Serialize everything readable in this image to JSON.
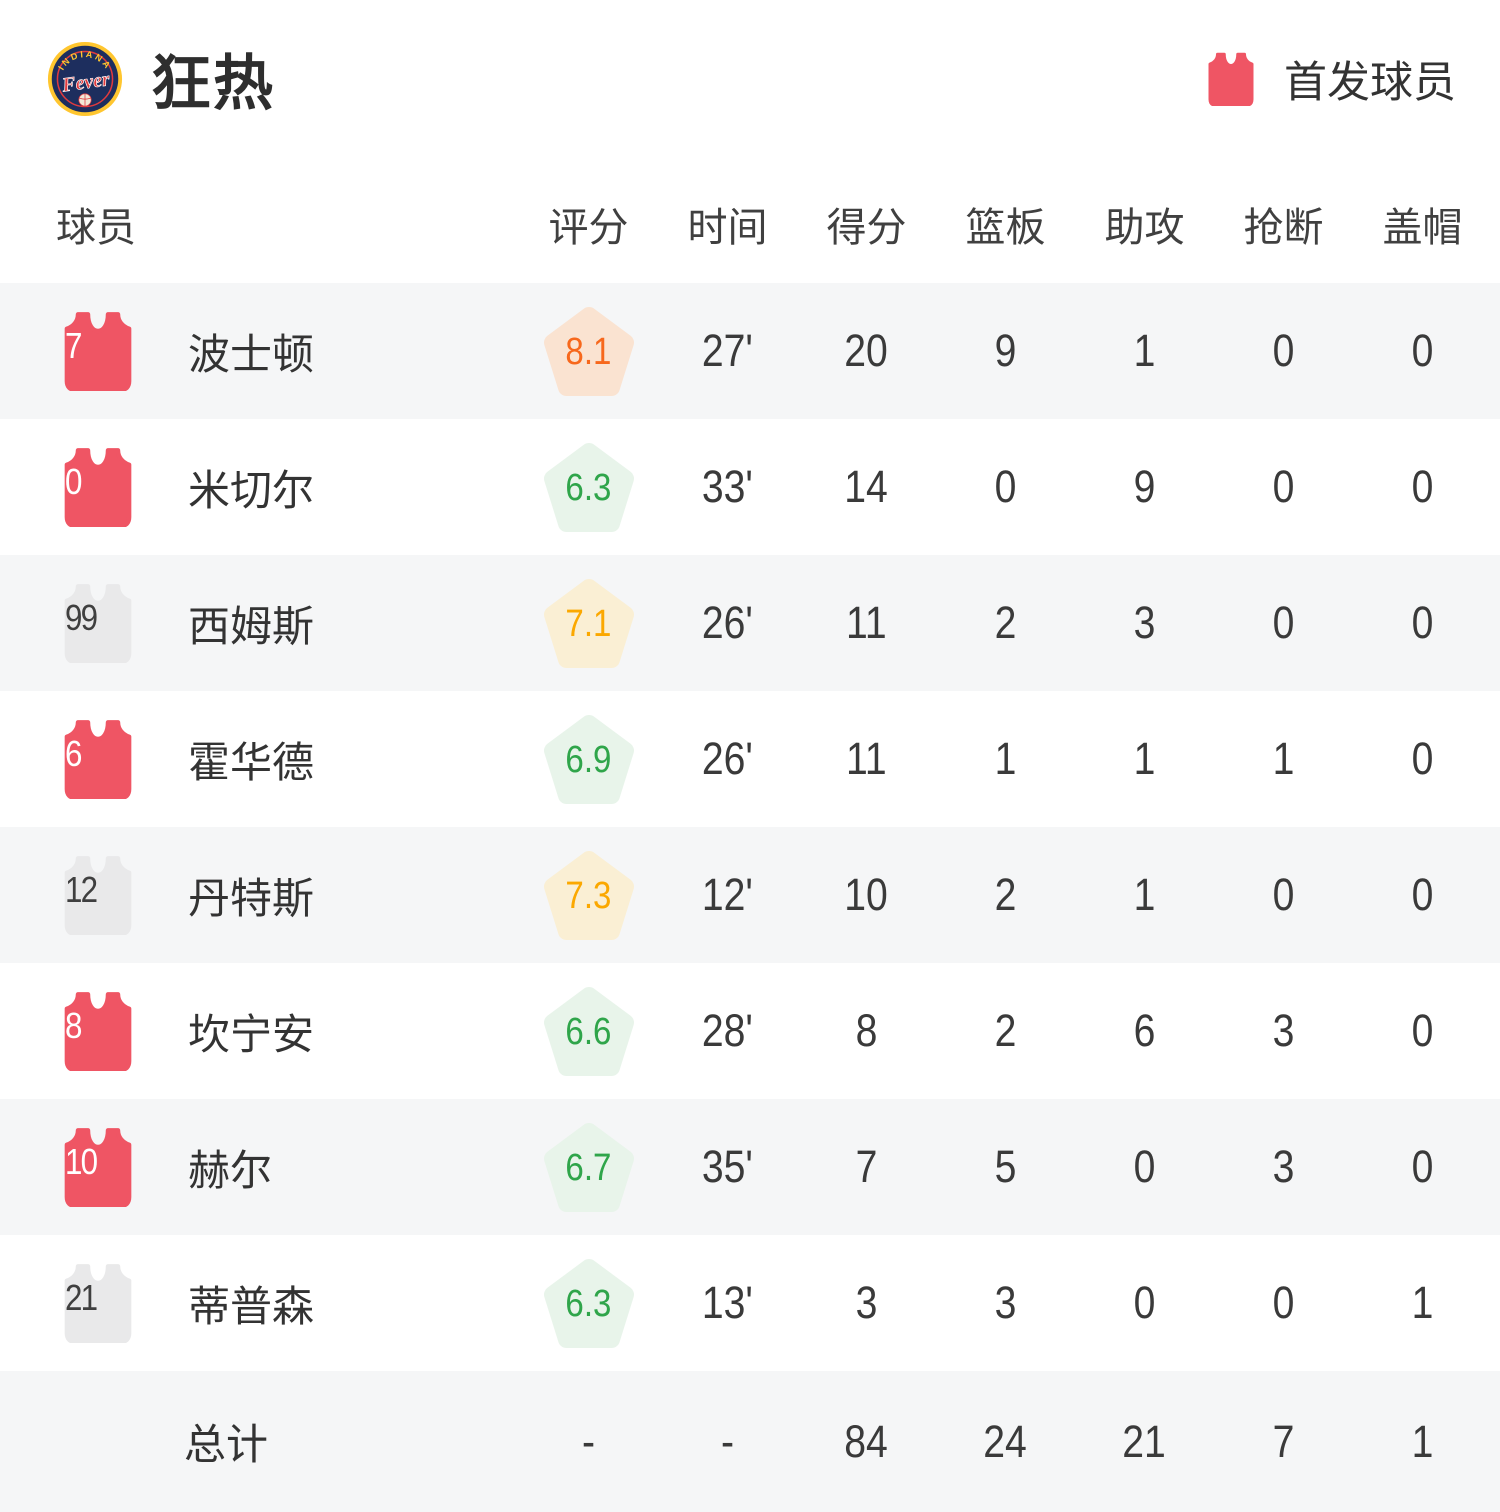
{
  "team": {
    "name": "狂热",
    "logo_top_text": "INDIANA",
    "logo_script_text": "Fever"
  },
  "legend": {
    "label": "首发球员"
  },
  "table": {
    "columns": [
      "球员",
      "评分",
      "时间",
      "得分",
      "篮板",
      "助攻",
      "抢断",
      "盖帽"
    ],
    "rows": [
      {
        "number": "7",
        "jersey": "red",
        "name": "波士顿",
        "rating": "8.1",
        "rating_tier": "high",
        "time": "27'",
        "pts": "20",
        "reb": "9",
        "ast": "1",
        "stl": "0",
        "blk": "0"
      },
      {
        "number": "0",
        "jersey": "red",
        "name": "米切尔",
        "rating": "6.3",
        "rating_tier": "low",
        "time": "33'",
        "pts": "14",
        "reb": "0",
        "ast": "9",
        "stl": "0",
        "blk": "0"
      },
      {
        "number": "99",
        "jersey": "gray",
        "name": "西姆斯",
        "rating": "7.1",
        "rating_tier": "mid",
        "time": "26'",
        "pts": "11",
        "reb": "2",
        "ast": "3",
        "stl": "0",
        "blk": "0"
      },
      {
        "number": "6",
        "jersey": "red",
        "name": "霍华德",
        "rating": "6.9",
        "rating_tier": "low",
        "time": "26'",
        "pts": "11",
        "reb": "1",
        "ast": "1",
        "stl": "1",
        "blk": "0"
      },
      {
        "number": "12",
        "jersey": "gray",
        "name": "丹特斯",
        "rating": "7.3",
        "rating_tier": "mid",
        "time": "12'",
        "pts": "10",
        "reb": "2",
        "ast": "1",
        "stl": "0",
        "blk": "0"
      },
      {
        "number": "8",
        "jersey": "red",
        "name": "坎宁安",
        "rating": "6.6",
        "rating_tier": "low",
        "time": "28'",
        "pts": "8",
        "reb": "2",
        "ast": "6",
        "stl": "3",
        "blk": "0"
      },
      {
        "number": "10",
        "jersey": "red",
        "name": "赫尔",
        "rating": "6.7",
        "rating_tier": "low",
        "time": "35'",
        "pts": "7",
        "reb": "5",
        "ast": "0",
        "stl": "3",
        "blk": "0"
      },
      {
        "number": "21",
        "jersey": "gray",
        "name": "蒂普森",
        "rating": "6.3",
        "rating_tier": "low",
        "time": "13'",
        "pts": "3",
        "reb": "3",
        "ast": "0",
        "stl": "0",
        "blk": "1"
      }
    ],
    "total": {
      "label": "总计",
      "rating": "-",
      "time": "-",
      "pts": "84",
      "reb": "24",
      "ast": "21",
      "stl": "7",
      "blk": "1"
    }
  },
  "colors": {
    "background": "#ffffff",
    "row_alt_bg": "#f5f6f7",
    "text_primary": "#333333",
    "text_header": "#404040",
    "jersey_red": "#ef5564",
    "jersey_red_text": "#ffffff",
    "jersey_gray": "#e9e9ea",
    "jersey_gray_text": "#3f3f3f",
    "rating_high_fg": "#f7681c",
    "rating_high_bg": "#fae3d1",
    "rating_mid_fg": "#fba800",
    "rating_mid_bg": "#faefd4",
    "rating_low_fg": "#2fa54a",
    "rating_low_bg": "#e8f4ea",
    "logo_navy": "#1d2e5e",
    "logo_gold": "#ffc62f",
    "logo_red": "#e03a3e"
  }
}
